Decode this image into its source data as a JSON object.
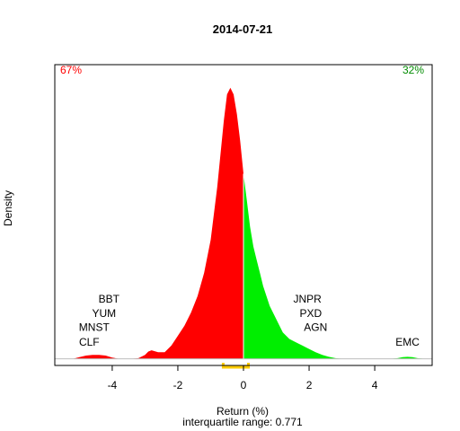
{
  "chart_data": {
    "type": "area",
    "title": "2014-07-21",
    "xlabel": "Return (%)",
    "ylabel": "Density",
    "subtitle": "interquartile range: 0.771",
    "xlim": [
      -5.75,
      5.75
    ],
    "ylim": [
      -0.02,
      0.89
    ],
    "x_ticks": [
      -4,
      -2,
      0,
      2,
      4
    ],
    "negative_share": "67%",
    "positive_share": "32%",
    "colors": {
      "negative": "#ff0000",
      "positive": "#00ee00",
      "iqr": "#ffcc00",
      "frame": "#000000",
      "baseline": "#bebebe",
      "zero_line": "#ffffff"
    },
    "interquartile": [
      -0.62,
      0.15
    ],
    "density": {
      "x": [
        -5.2,
        -5.0,
        -4.8,
        -4.6,
        -4.4,
        -4.2,
        -4.0,
        -3.8,
        -3.6,
        -3.4,
        -3.2,
        -3.0,
        -2.9,
        -2.8,
        -2.6,
        -2.4,
        -2.2,
        -2.0,
        -1.8,
        -1.6,
        -1.4,
        -1.2,
        -1.0,
        -0.8,
        -0.6,
        -0.5,
        -0.4,
        -0.3,
        -0.2,
        -0.1,
        0.0,
        0.1,
        0.2,
        0.3,
        0.4,
        0.5,
        0.6,
        0.8,
        1.0,
        1.2,
        1.4,
        1.6,
        1.8,
        2.0,
        2.2,
        2.4,
        2.6,
        2.8,
        3.0,
        3.5,
        4.0,
        4.5,
        4.7,
        4.85,
        5.0,
        5.15,
        5.3,
        5.5
      ],
      "y": [
        0.0,
        0.005,
        0.01,
        0.012,
        0.012,
        0.01,
        0.004,
        0.0,
        0.0,
        0.0,
        0.002,
        0.012,
        0.022,
        0.026,
        0.02,
        0.02,
        0.04,
        0.07,
        0.1,
        0.14,
        0.19,
        0.26,
        0.36,
        0.52,
        0.72,
        0.8,
        0.82,
        0.8,
        0.74,
        0.66,
        0.56,
        0.48,
        0.4,
        0.34,
        0.3,
        0.26,
        0.22,
        0.16,
        0.12,
        0.08,
        0.06,
        0.05,
        0.04,
        0.03,
        0.02,
        0.012,
        0.006,
        0.002,
        0.0,
        0.0,
        0.0,
        0.0,
        0.002,
        0.005,
        0.006,
        0.005,
        0.002,
        0.0
      ]
    },
    "annotations": [
      {
        "text": "BBT",
        "x": -4.1,
        "y": 0.17
      },
      {
        "text": "YUM",
        "x": -4.25,
        "y": 0.127
      },
      {
        "text": "MNST",
        "x": -4.55,
        "y": 0.084
      },
      {
        "text": "CLF",
        "x": -4.7,
        "y": 0.04
      },
      {
        "text": "JNPR",
        "x": 1.95,
        "y": 0.17
      },
      {
        "text": "PXD",
        "x": 2.05,
        "y": 0.127
      },
      {
        "text": "AGN",
        "x": 2.2,
        "y": 0.084
      },
      {
        "text": "EMC",
        "x": 5.0,
        "y": 0.04
      }
    ]
  }
}
